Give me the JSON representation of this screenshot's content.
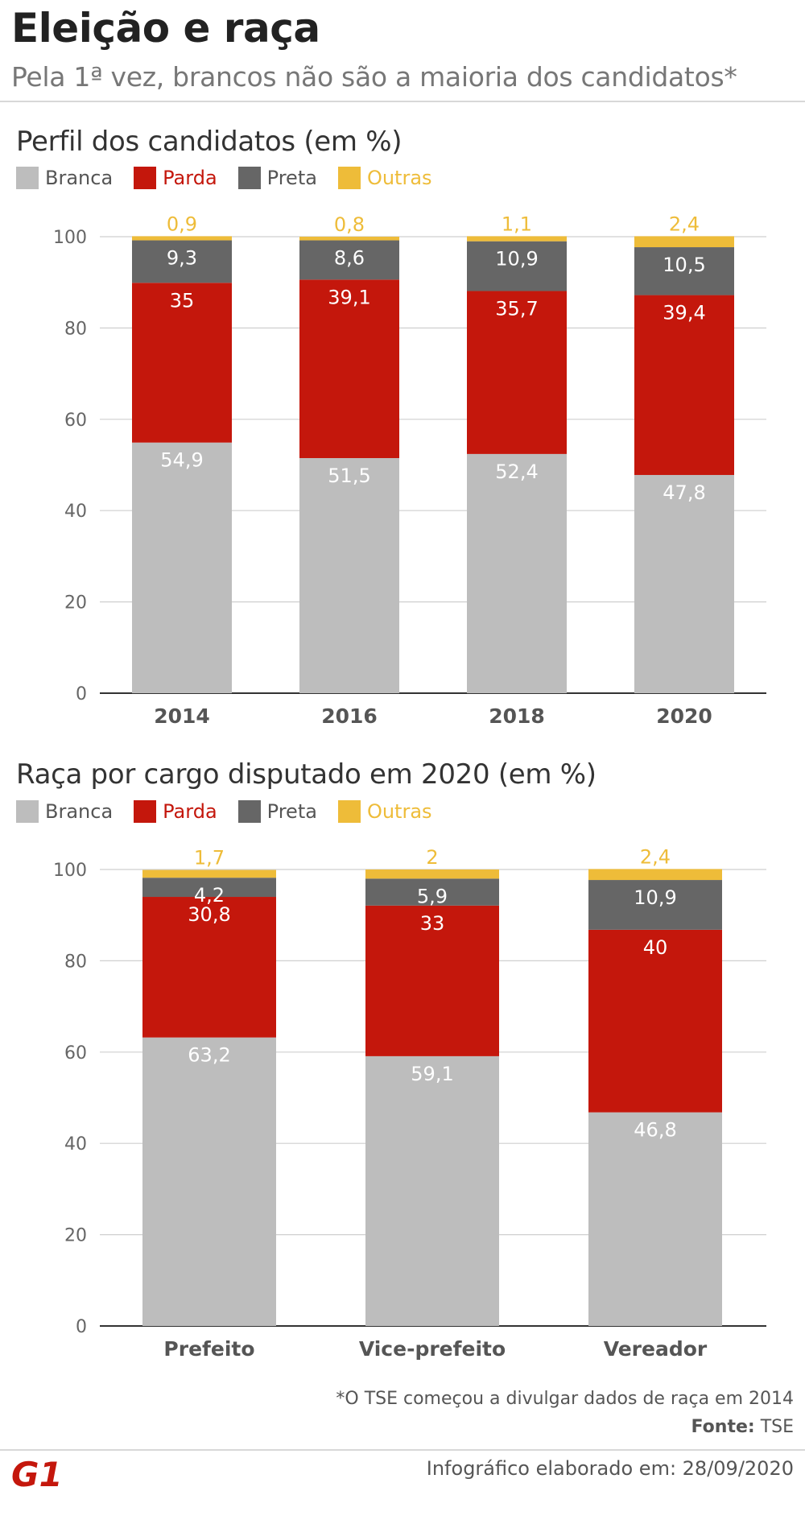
{
  "header": {
    "title": "Eleição e raça",
    "subtitle": "Pela 1ª vez, brancos não são a maioria dos candidatos*"
  },
  "legend": [
    {
      "name": "Branca",
      "color": "#bdbdbd",
      "text_color": "#555555"
    },
    {
      "name": "Parda",
      "color": "#c4170c",
      "text_color": "#c4170c"
    },
    {
      "name": "Preta",
      "color": "#666666",
      "text_color": "#555555"
    },
    {
      "name": "Outras",
      "color": "#eebc39",
      "text_color": "#eebc39"
    }
  ],
  "chart_data": [
    {
      "type": "bar",
      "stacked": true,
      "title": "Perfil dos candidatos (em %)",
      "categories": [
        "2014",
        "2016",
        "2018",
        "2020"
      ],
      "series": [
        {
          "name": "Branca",
          "values": [
            54.9,
            51.5,
            52.4,
            47.8
          ],
          "labels": [
            "54,9",
            "51,5",
            "52,4",
            "47,8"
          ]
        },
        {
          "name": "Parda",
          "values": [
            35,
            39.1,
            35.7,
            39.4
          ],
          "labels": [
            "35",
            "39,1",
            "35,7",
            "39,4"
          ]
        },
        {
          "name": "Preta",
          "values": [
            9.3,
            8.6,
            10.9,
            10.5
          ],
          "labels": [
            "9,3",
            "8,6",
            "10,9",
            "10,5"
          ]
        },
        {
          "name": "Outras",
          "values": [
            0.9,
            0.8,
            1.1,
            2.4
          ],
          "labels": [
            "0,9",
            "0,8",
            "1,1",
            "2,4"
          ]
        }
      ],
      "yticks": [
        0,
        20,
        40,
        60,
        80,
        100
      ],
      "ylim": [
        0,
        100
      ],
      "grid": true,
      "legend_position": "top-left"
    },
    {
      "type": "bar",
      "stacked": true,
      "title": "Raça por cargo disputado em 2020 (em %)",
      "categories": [
        "Prefeito",
        "Vice-prefeito",
        "Vereador"
      ],
      "series": [
        {
          "name": "Branca",
          "values": [
            63.2,
            59.1,
            46.8
          ],
          "labels": [
            "63,2",
            "59,1",
            "46,8"
          ]
        },
        {
          "name": "Parda",
          "values": [
            30.8,
            33,
            40
          ],
          "labels": [
            "30,8",
            "33",
            "40"
          ]
        },
        {
          "name": "Preta",
          "values": [
            4.2,
            5.9,
            10.9
          ],
          "labels": [
            "4,2",
            "5,9",
            "10,9"
          ]
        },
        {
          "name": "Outras",
          "values": [
            1.7,
            2,
            2.4
          ],
          "labels": [
            "1,7",
            "2",
            "2,4"
          ]
        }
      ],
      "yticks": [
        0,
        20,
        40,
        60,
        80,
        100
      ],
      "ylim": [
        0,
        100
      ],
      "grid": true,
      "legend_position": "top-left"
    }
  ],
  "footer": {
    "note": "*O TSE começou a divulgar dados de raça em 2014",
    "source_label": "Fonte:",
    "source_value": "TSE",
    "logo_text": "G1",
    "logo_color": "#c4170c",
    "date": "Infográfico elaborado em: 28/09/2020"
  }
}
